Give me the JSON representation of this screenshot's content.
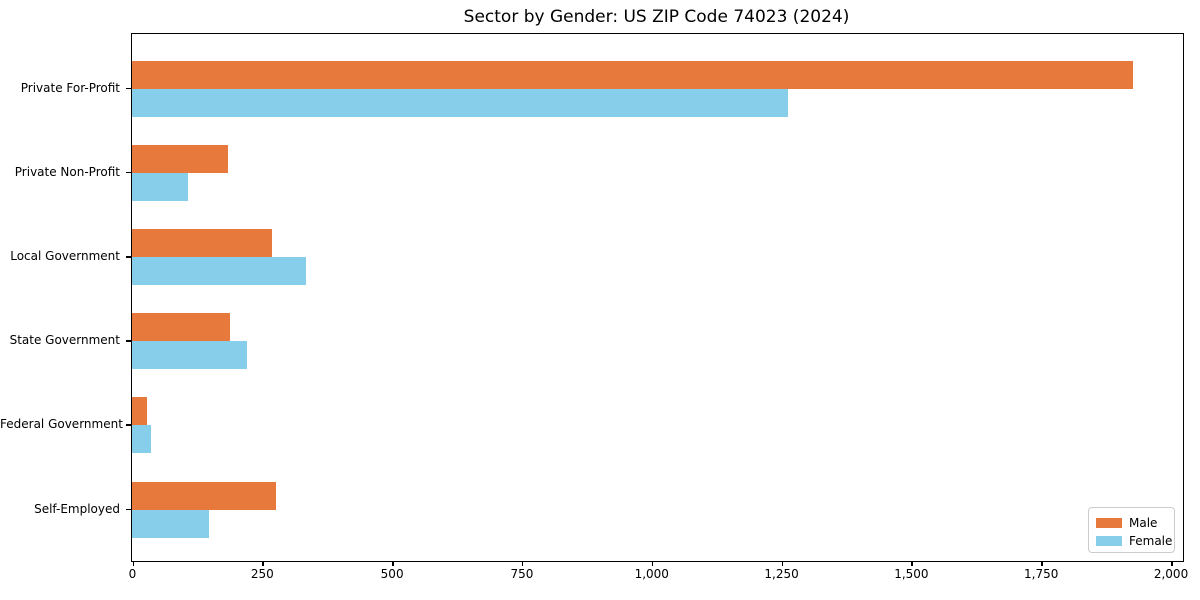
{
  "chart_data": {
    "type": "bar",
    "orientation": "horizontal",
    "title": "Sector by Gender: US ZIP Code 74023 (2024)",
    "categories": [
      "Private For-Profit",
      "Private Non-Profit",
      "Local Government",
      "State Government",
      "Federal Government",
      "Self-Employed"
    ],
    "series": [
      {
        "name": "Male",
        "color": "#E8793D",
        "values": [
          1928,
          184,
          270,
          188,
          28,
          277
        ]
      },
      {
        "name": "Female",
        "color": "#87CEEB",
        "values": [
          1263,
          108,
          336,
          221,
          37,
          148
        ]
      }
    ],
    "xlabel": "",
    "ylabel": "",
    "xlim": [
      0,
      2024
    ],
    "xticks": [
      0,
      250,
      500,
      750,
      1000,
      1250,
      1500,
      1750,
      2000
    ],
    "xtick_labels": [
      "0",
      "250",
      "500",
      "750",
      "1,000",
      "1,250",
      "1,500",
      "1,750",
      "2,000"
    ],
    "grid": false,
    "legend": {
      "position": "lower right",
      "entries": [
        "Male",
        "Female"
      ]
    }
  }
}
